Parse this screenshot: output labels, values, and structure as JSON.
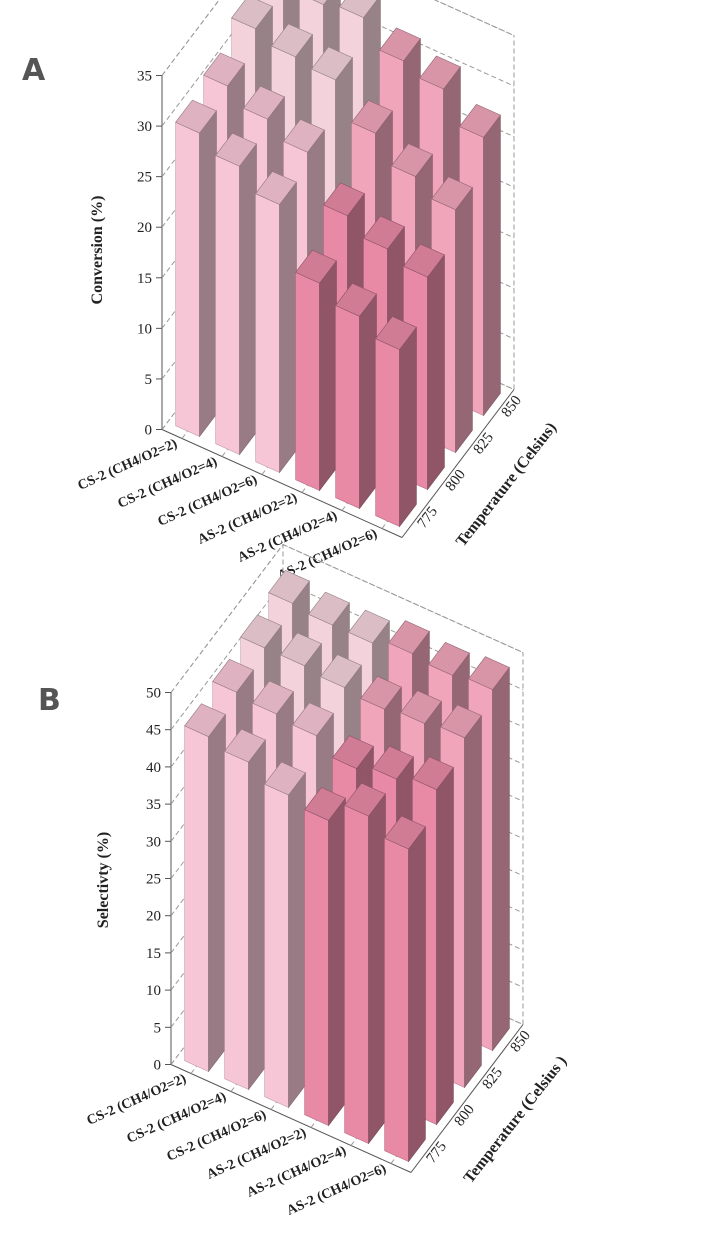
{
  "colors": {
    "cs_front": "#f7c6d6",
    "as_front": "#e88aa6",
    "back_rows": "#f3d2dc",
    "top_cs": "#f9d9e3",
    "top_as": "#f0a5bb",
    "side_shade": "#8c6a74"
  },
  "chart_data": [
    {
      "panel": "A",
      "type": "bar3d",
      "title": "",
      "zlabel": "Conversion (%)",
      "ylabel": "Temperature (Celsius)",
      "xlabel": "",
      "zlim": [
        0,
        35
      ],
      "z_ticks": [
        0,
        5,
        10,
        15,
        20,
        25,
        30,
        35
      ],
      "categories": [
        "CS-2 (CH4/O2=2)",
        "CS-2 (CH4/O2=4)",
        "CS-2 (CH4/O2=6)",
        "AS-2 (CH4/O2=2)",
        "AS-2 (CH4/O2=4)",
        "AS-2 (CH4/O2=6)"
      ],
      "temperatures": [
        "775",
        "800",
        "825",
        "850"
      ],
      "series": [
        {
          "temperature": "775",
          "values": [
            30,
            28.5,
            26.5,
            20.5,
            19,
            17.5
          ]
        },
        {
          "temperature": "800",
          "values": [
            31,
            29.5,
            28,
            23.5,
            22,
            21
          ]
        },
        {
          "temperature": "825",
          "values": [
            33,
            32,
            31.5,
            28,
            25.5,
            24
          ]
        },
        {
          "temperature": "850",
          "values": [
            34,
            33.5,
            34,
            31.5,
            30.5,
            27.5
          ]
        }
      ]
    },
    {
      "panel": "B",
      "type": "bar3d",
      "title": "",
      "zlabel": "Selectivty (%)",
      "ylabel": "Temperature (Celsius )",
      "xlabel": "",
      "zlim": [
        0,
        50
      ],
      "z_ticks": [
        0,
        5,
        10,
        15,
        20,
        25,
        30,
        35,
        40,
        45,
        50
      ],
      "categories": [
        "CS-2 (CH4/O2=2)",
        "CS-2 (CH4/O2=4)",
        "CS-2 (CH4/O2=6)",
        "AS-2 (CH4/O2=2)",
        "AS-2 (CH4/O2=4)",
        "AS-2 (CH4/O2=6)"
      ],
      "temperatures": [
        "775",
        "800",
        "825",
        "850"
      ],
      "series": [
        {
          "temperature": "775",
          "values": [
            45,
            44,
            42,
            41,
            44,
            42
          ]
        },
        {
          "temperature": "800",
          "values": [
            46,
            45.5,
            45,
            43,
            44,
            45
          ]
        },
        {
          "temperature": "825",
          "values": [
            47,
            47,
            46.5,
            46,
            46.5,
            47
          ]
        },
        {
          "temperature": "850",
          "values": [
            48,
            47.5,
            47.5,
            48.5,
            48,
            48.5
          ]
        }
      ]
    }
  ]
}
